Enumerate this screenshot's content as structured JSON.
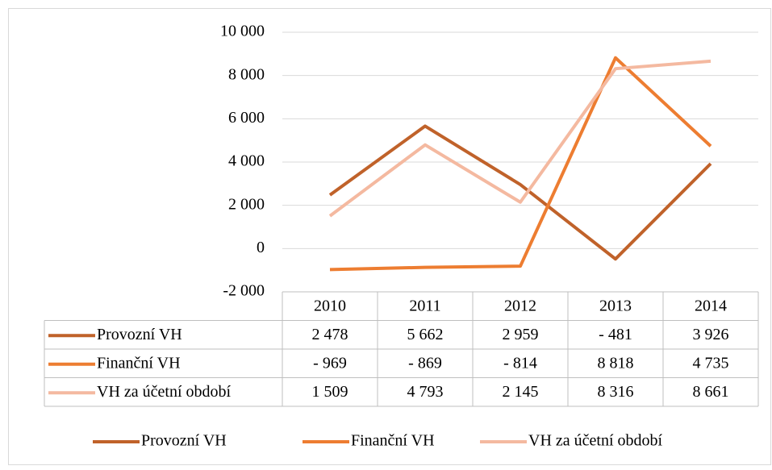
{
  "chart_data": {
    "type": "line",
    "categories": [
      "2010",
      "2011",
      "2012",
      "2013",
      "2014"
    ],
    "series": [
      {
        "name": "Provozní VH",
        "color": "#c0622a",
        "values": [
          2478,
          5662,
          2959,
          -481,
          3926
        ],
        "value_labels": [
          "2 478",
          "5 662",
          "2 959",
          "- 481",
          "3 926"
        ]
      },
      {
        "name": "Finanční VH",
        "color": "#ed7d31",
        "values": [
          -969,
          -869,
          -814,
          8818,
          4735
        ],
        "value_labels": [
          "- 969",
          "- 869",
          "- 814",
          "8 818",
          "4 735"
        ]
      },
      {
        "name": "VH za účetní období",
        "color": "#f4b9a0",
        "values": [
          1509,
          4793,
          2145,
          8316,
          8661
        ],
        "value_labels": [
          "1 509",
          "4 793",
          "2 145",
          "8 316",
          "8 661"
        ]
      }
    ],
    "ylim": [
      -2000,
      10000
    ],
    "yticks": [
      {
        "value": -2000,
        "label": "-2 000"
      },
      0,
      {
        "value": 2000,
        "label": "2 000"
      },
      {
        "value": 4000,
        "label": "4 000"
      },
      {
        "value": 6000,
        "label": "6 000"
      },
      {
        "value": 8000,
        "label": "8 000"
      },
      {
        "value": 10000,
        "label": "10 000"
      }
    ],
    "grid": true,
    "legend": "bottom",
    "data_table": true
  }
}
